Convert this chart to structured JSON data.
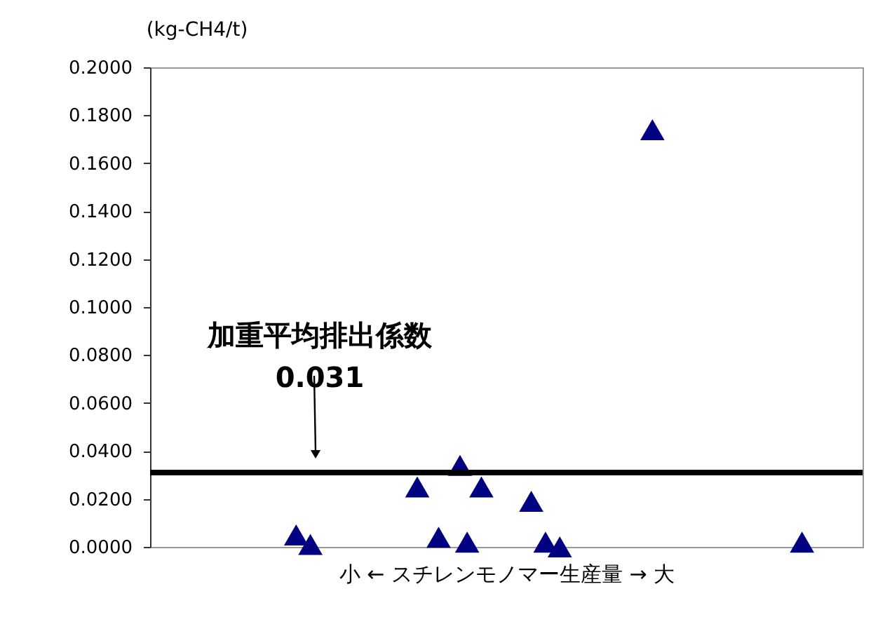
{
  "chart_data": {
    "type": "scatter",
    "xlabel": "小 ← スチレンモノマー生産量 → 大",
    "ylabel": "(kg-CH4/t)",
    "categories": [
      null,
      null,
      null,
      null,
      null,
      null,
      null,
      null,
      null,
      null,
      null,
      null,
      null,
      null,
      null,
      null,
      null,
      null,
      null,
      null,
      null,
      null,
      null,
      null,
      null,
      null,
      null,
      null,
      null,
      null,
      null,
      null,
      null,
      null,
      null,
      null,
      null,
      null,
      null,
      null,
      null,
      null,
      null,
      null,
      null,
      null,
      null,
      null,
      null,
      null,
      null,
      null,
      null,
      null,
      null,
      null,
      null,
      null,
      null,
      null,
      null,
      null,
      null,
      null,
      null,
      null,
      null,
      null,
      null,
      null,
      null,
      null,
      null,
      null,
      null,
      null,
      null,
      null,
      null,
      null,
      null,
      null,
      null,
      null,
      null,
      null,
      null,
      null,
      null,
      null,
      null,
      null,
      null,
      null,
      null,
      null,
      null,
      null,
      null,
      null
    ],
    "series": [
      {
        "color": "#000080",
        "values": [
          null,
          null,
          null,
          null,
          null,
          null,
          null,
          null,
          null,
          null,
          null,
          null,
          null,
          null,
          null,
          null,
          null,
          null,
          null,
          null,
          0.005,
          null,
          0.001,
          null,
          null,
          null,
          null,
          null,
          null,
          null,
          null,
          null,
          null,
          null,
          null,
          null,
          null,
          0.025,
          null,
          null,
          0.004,
          null,
          null,
          0.034,
          0.002,
          null,
          0.025,
          null,
          null,
          null,
          null,
          null,
          null,
          0.019,
          null,
          0.002,
          null,
          0.0,
          null,
          null,
          null,
          null,
          null,
          null,
          null,
          null,
          null,
          null,
          null,
          null,
          0.174,
          null,
          null,
          null,
          null,
          null,
          null,
          null,
          null,
          null,
          null,
          null,
          null,
          null,
          null,
          null,
          null,
          null,
          null,
          null,
          null,
          0.002,
          null,
          null,
          null,
          null,
          null,
          null,
          null,
          null
        ]
      }
    ],
    "ylim": [
      0,
      0.2
    ],
    "yticks": [
      {
        "value": 0,
        "label": "0.0000"
      },
      {
        "value": 0.02,
        "label": "0.0200"
      },
      {
        "value": 0.04,
        "label": "0.0400"
      },
      {
        "value": 0.06,
        "label": "0.0600"
      },
      {
        "value": 0.08,
        "label": "0.0800"
      },
      {
        "value": 0.1,
        "label": "0.1000"
      },
      {
        "value": 0.12,
        "label": "0.1200"
      },
      {
        "value": 0.14,
        "label": "0.1400"
      },
      {
        "value": 0.16,
        "label": "0.1600"
      },
      {
        "value": 0.18,
        "label": "0.1800"
      },
      {
        "value": 0.2,
        "label": "0.2000"
      }
    ],
    "ref_lines": [
      {
        "axis": "y",
        "value": 0.031,
        "label": "加重平均排出係数\n0.031",
        "color": "#000000"
      }
    ],
    "marker": "triangle",
    "tick_labels": "y",
    "grid": false
  }
}
